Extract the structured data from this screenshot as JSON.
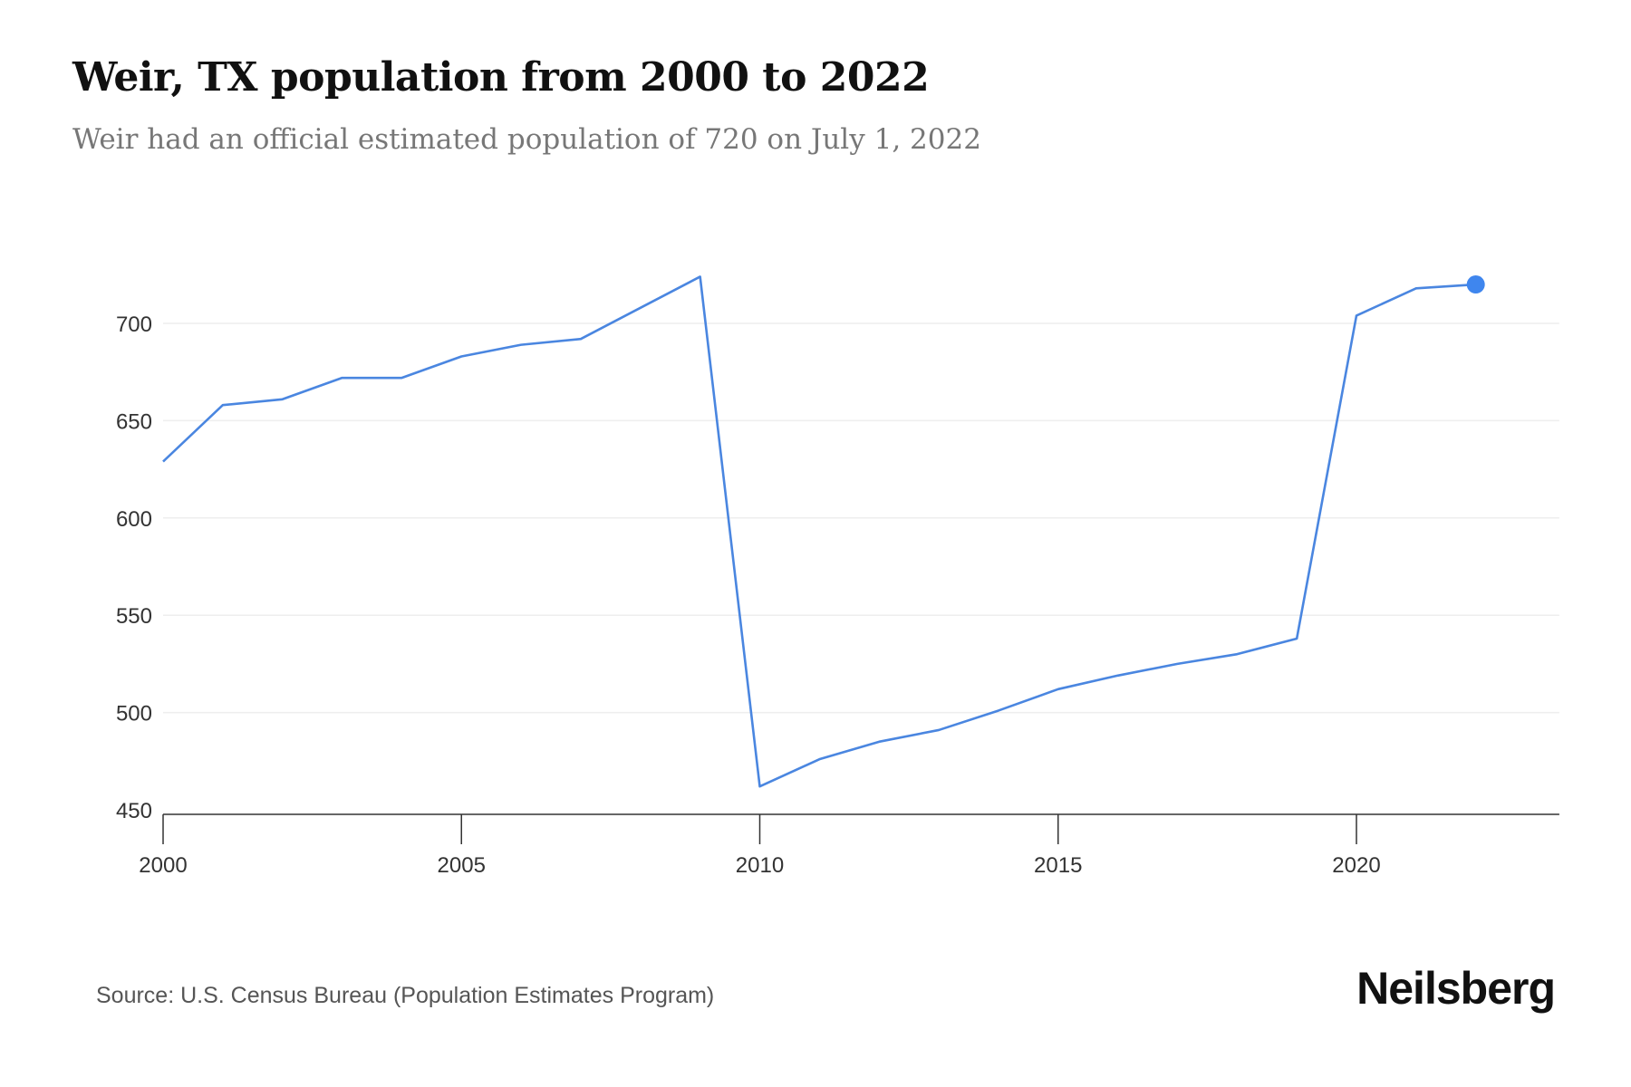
{
  "chart_data": {
    "type": "line",
    "title": "Weir, TX population from 2000 to 2022",
    "subtitle": "Weir had an official estimated population of 720 on July 1, 2022",
    "xlabel": "",
    "ylabel": "",
    "x": [
      2000,
      2001,
      2002,
      2003,
      2004,
      2005,
      2006,
      2007,
      2008,
      2009,
      2010,
      2011,
      2012,
      2013,
      2014,
      2015,
      2016,
      2017,
      2018,
      2019,
      2020,
      2021,
      2022
    ],
    "series": [
      {
        "name": "Population",
        "color": "#4a86e0",
        "values": [
          629,
          658,
          661,
          672,
          672,
          683,
          689,
          692,
          708,
          724,
          462,
          476,
          485,
          491,
          501,
          512,
          519,
          525,
          530,
          538,
          704,
          718,
          720
        ]
      }
    ],
    "xlim": [
      2000,
      2023.4
    ],
    "ylim": [
      450,
      735
    ],
    "xticks": [
      "2000",
      "2005",
      "2010",
      "2015",
      "2020"
    ],
    "yticks": [
      "450",
      "500",
      "550",
      "600",
      "650",
      "700"
    ],
    "grid": true,
    "highlight_last_point": true
  },
  "footer": {
    "source": "Source: U.S. Census Bureau (Population Estimates Program)",
    "logo": "Neilsberg"
  }
}
